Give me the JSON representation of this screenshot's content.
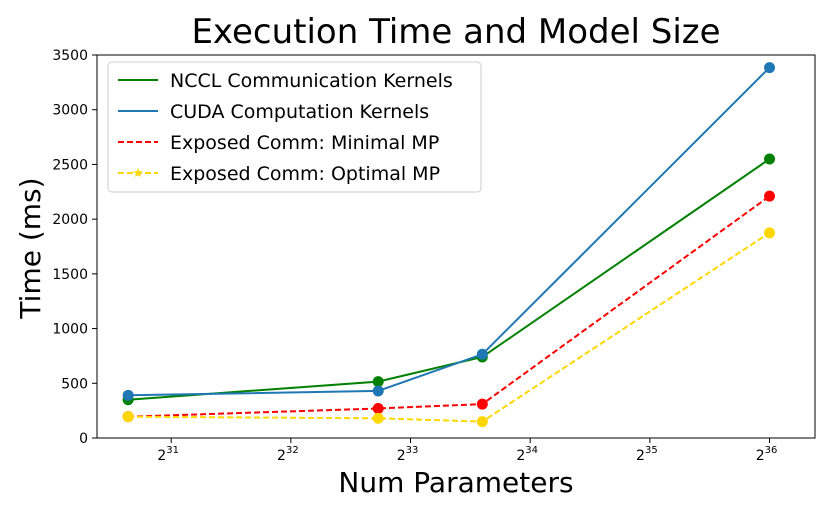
{
  "chart_data": {
    "type": "line",
    "title": "Execution Time and Model Size",
    "xlabel": "Num Parameters",
    "ylabel": "Time (ms)",
    "xscale": "log2",
    "xlim_log2": [
      30.38,
      36.38
    ],
    "ylim": [
      0,
      3500
    ],
    "yticks": [
      0,
      500,
      1000,
      1500,
      2000,
      2500,
      3000,
      3500
    ],
    "xticks": [
      {
        "base": "2",
        "exp": "31"
      },
      {
        "base": "2",
        "exp": "32"
      },
      {
        "base": "2",
        "exp": "33"
      },
      {
        "base": "2",
        "exp": "34"
      },
      {
        "base": "2",
        "exp": "35"
      },
      {
        "base": "2",
        "exp": "36"
      }
    ],
    "x_log2": [
      30.64,
      32.73,
      33.6,
      36.0
    ],
    "legend_position": "upper-left",
    "series": [
      {
        "name": "NCCL Communication Kernels",
        "color": "#008000",
        "style": "solid",
        "values": [
          350,
          515,
          740,
          2550
        ]
      },
      {
        "name": "CUDA Computation Kernels",
        "color": "#1f77b4",
        "style": "solid",
        "values": [
          390,
          430,
          765,
          3385
        ]
      },
      {
        "name": "Exposed Comm: Minimal MP",
        "color": "#ff0000",
        "style": "dashed",
        "values": [
          195,
          270,
          310,
          2210
        ]
      },
      {
        "name": "Exposed Comm: Optimal MP",
        "color": "#ffd700",
        "style": "dashed",
        "values": [
          195,
          180,
          150,
          1875
        ]
      }
    ]
  }
}
